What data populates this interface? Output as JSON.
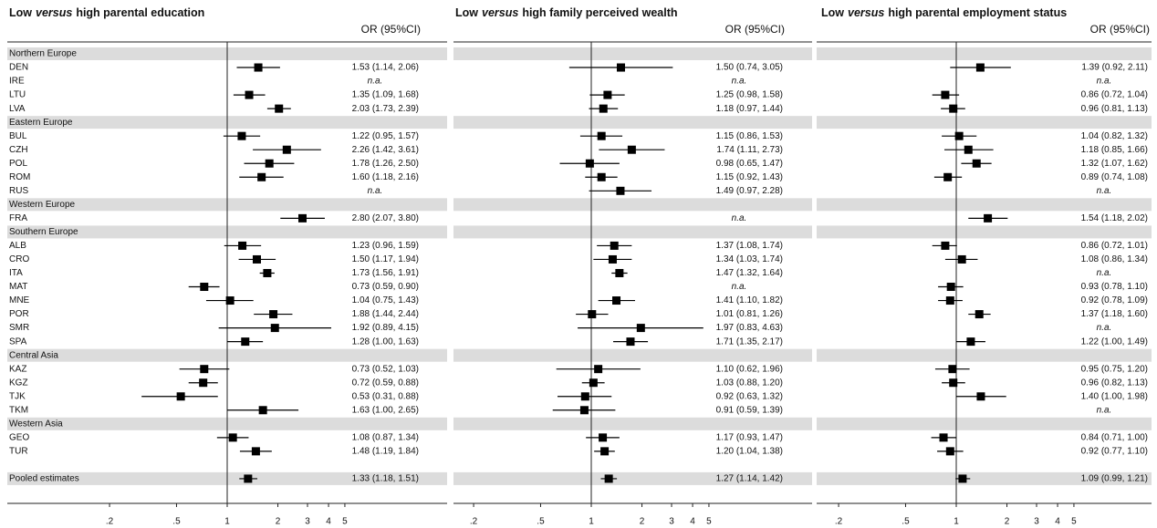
{
  "chart_data": [
    {
      "type": "forest",
      "title": {
        "before": "Low",
        "emphasis": "versus",
        "after": "high parental education"
      },
      "column_header": "OR (95%CI)",
      "groups": [
        {
          "name": "Northern Europe",
          "categories": [
            "DEN",
            "IRE",
            "LTU",
            "LVA"
          ]
        },
        {
          "name": "Eastern Europe",
          "categories": [
            "BUL",
            "CZH",
            "POL",
            "ROM",
            "RUS"
          ]
        },
        {
          "name": "Western Europe",
          "categories": [
            "FRA"
          ]
        },
        {
          "name": "Southern Europe",
          "categories": [
            "ALB",
            "CRO",
            "ITA",
            "MAT",
            "MNE",
            "POR",
            "SMR",
            "SPA"
          ]
        },
        {
          "name": "Central Asia",
          "categories": [
            "KAZ",
            "KGZ",
            "TJK",
            "TKM"
          ]
        },
        {
          "name": "Western Asia",
          "categories": [
            "GEO",
            "TUR"
          ]
        }
      ],
      "pooled_label": "Pooled estimates",
      "values": [
        1.53,
        null,
        1.35,
        2.03,
        1.22,
        2.26,
        1.78,
        1.6,
        null,
        2.8,
        1.23,
        1.5,
        1.73,
        0.73,
        1.04,
        1.88,
        1.92,
        1.28,
        0.73,
        0.72,
        0.53,
        1.63,
        1.08,
        1.48,
        1.33
      ],
      "lo": [
        1.14,
        null,
        1.09,
        1.73,
        0.95,
        1.42,
        1.26,
        1.18,
        null,
        2.07,
        0.96,
        1.17,
        1.56,
        0.59,
        0.75,
        1.44,
        0.89,
        1.0,
        0.52,
        0.59,
        0.31,
        1.0,
        0.87,
        1.19,
        1.18
      ],
      "hi": [
        2.06,
        null,
        1.68,
        2.39,
        1.57,
        3.61,
        2.5,
        2.16,
        null,
        3.8,
        1.59,
        1.94,
        1.91,
        0.9,
        1.43,
        2.44,
        4.15,
        1.63,
        1.03,
        0.88,
        0.88,
        2.65,
        1.34,
        1.84,
        1.51
      ],
      "value_labels": [
        "1.53 (1.14, 2.06)",
        "n.a.",
        "1.35 (1.09, 1.68)",
        "2.03 (1.73, 2.39)",
        "1.22 (0.95, 1.57)",
        "2.26 (1.42, 3.61)",
        "1.78 (1.26, 2.50)",
        "1.60 (1.18, 2.16)",
        "n.a.",
        "2.80 (2.07, 3.80)",
        "1.23 (0.96, 1.59)",
        "1.50 (1.17, 1.94)",
        "1.73 (1.56, 1.91)",
        "0.73 (0.59, 0.90)",
        "1.04 (0.75, 1.43)",
        "1.88 (1.44, 2.44)",
        "1.92 (0.89, 4.15)",
        "1.28 (1.00, 1.63)",
        "0.73 (0.52, 1.03)",
        "0.72 (0.59, 0.88)",
        "0.53 (0.31, 0.88)",
        "1.63 (1.00, 2.65)",
        "1.08 (0.87, 1.34)",
        "1.48 (1.19, 1.84)",
        "1.33 (1.18, 1.51)"
      ],
      "xscale": "log",
      "xlim": [
        0.05,
        20
      ],
      "xticks": [
        {
          "value": 0.2,
          "label": ".2"
        },
        {
          "value": 0.5,
          "label": ".5"
        },
        1,
        2,
        3,
        4,
        5
      ],
      "reference": 1,
      "color": "#000000",
      "band_color": "#dcdcdc"
    },
    {
      "type": "forest",
      "title": {
        "before": "Low",
        "emphasis": "versus",
        "after": "high family perceived wealth"
      },
      "column_header": "OR (95%CI)",
      "values": [
        1.5,
        null,
        1.25,
        1.18,
        1.15,
        1.74,
        0.98,
        1.15,
        1.49,
        null,
        1.37,
        1.34,
        1.47,
        null,
        1.41,
        1.01,
        1.97,
        1.71,
        1.1,
        1.03,
        0.92,
        0.91,
        1.17,
        1.2,
        1.27
      ],
      "lo": [
        0.74,
        null,
        0.98,
        0.97,
        0.86,
        1.11,
        0.65,
        0.92,
        0.97,
        null,
        1.08,
        1.03,
        1.32,
        null,
        1.1,
        0.81,
        0.83,
        1.35,
        0.62,
        0.88,
        0.63,
        0.59,
        0.93,
        1.04,
        1.14
      ],
      "hi": [
        3.05,
        null,
        1.58,
        1.44,
        1.53,
        2.73,
        1.47,
        1.43,
        2.28,
        null,
        1.74,
        1.74,
        1.64,
        null,
        1.82,
        1.26,
        4.63,
        2.17,
        1.96,
        1.2,
        1.32,
        1.39,
        1.47,
        1.38,
        1.42
      ],
      "value_labels": [
        "1.50 (0.74, 3.05)",
        "n.a.",
        "1.25 (0.98, 1.58)",
        "1.18 (0.97, 1.44)",
        "1.15 (0.86, 1.53)",
        "1.74 (1.11, 2.73)",
        "0.98 (0.65, 1.47)",
        "1.15 (0.92, 1.43)",
        "1.49 (0.97, 2.28)",
        "n.a.",
        "1.37 (1.08, 1.74)",
        "1.34 (1.03, 1.74)",
        "1.47 (1.32, 1.64)",
        "n.a.",
        "1.41 (1.10, 1.82)",
        "1.01 (0.81, 1.26)",
        "1.97 (0.83, 4.63)",
        "1.71 (1.35, 2.17)",
        "1.10 (0.62, 1.96)",
        "1.03 (0.88, 1.20)",
        "0.92 (0.63, 1.32)",
        "0.91 (0.59, 1.39)",
        "1.17 (0.93, 1.47)",
        "1.20 (1.04, 1.38)",
        "1.27 (1.14, 1.42)"
      ],
      "xscale": "log",
      "xlim": [
        0.05,
        20
      ],
      "xticks": [
        {
          "value": 0.2,
          "label": ".2"
        },
        {
          "value": 0.5,
          "label": ".5"
        },
        1,
        2,
        3,
        4,
        5
      ],
      "reference": 1,
      "color": "#000000",
      "band_color": "#dcdcdc"
    },
    {
      "type": "forest",
      "title": {
        "before": "Low",
        "emphasis": "versus",
        "after": "high parental employment status"
      },
      "column_header": "OR (95%CI)",
      "values": [
        1.39,
        null,
        0.86,
        0.96,
        1.04,
        1.18,
        1.32,
        0.89,
        null,
        1.54,
        0.86,
        1.08,
        null,
        0.93,
        0.92,
        1.37,
        null,
        1.22,
        0.95,
        0.96,
        1.4,
        null,
        0.84,
        0.92,
        1.09
      ],
      "lo": [
        0.92,
        null,
        0.72,
        0.81,
        0.82,
        0.85,
        1.07,
        0.74,
        null,
        1.18,
        0.72,
        0.86,
        null,
        0.78,
        0.78,
        1.18,
        null,
        1.0,
        0.75,
        0.82,
        1.0,
        null,
        0.71,
        0.77,
        0.99
      ],
      "hi": [
        2.11,
        null,
        1.04,
        1.13,
        1.32,
        1.66,
        1.62,
        1.08,
        null,
        2.02,
        1.01,
        1.34,
        null,
        1.1,
        1.09,
        1.6,
        null,
        1.49,
        1.2,
        1.13,
        1.98,
        null,
        1.0,
        1.1,
        1.21
      ],
      "value_labels": [
        "1.39 (0.92, 2.11)",
        "n.a.",
        "0.86 (0.72, 1.04)",
        "0.96 (0.81, 1.13)",
        "1.04 (0.82, 1.32)",
        "1.18 (0.85, 1.66)",
        "1.32 (1.07, 1.62)",
        "0.89 (0.74, 1.08)",
        "n.a.",
        "1.54 (1.18, 2.02)",
        "0.86 (0.72, 1.01)",
        "1.08 (0.86, 1.34)",
        "n.a.",
        "0.93 (0.78, 1.10)",
        "0.92 (0.78, 1.09)",
        "1.37 (1.18, 1.60)",
        "n.a.",
        "1.22 (1.00, 1.49)",
        "0.95 (0.75, 1.20)",
        "0.96 (0.82, 1.13)",
        "1.40 (1.00, 1.98)",
        "n.a.",
        "0.84 (0.71, 1.00)",
        "0.92 (0.77, 1.10)",
        "1.09 (0.99, 1.21)"
      ],
      "xscale": "log",
      "xlim": [
        0.05,
        20
      ],
      "xticks": [
        {
          "value": 0.2,
          "label": ".2"
        },
        {
          "value": 0.5,
          "label": ".5"
        },
        1,
        2,
        3,
        4,
        5
      ],
      "reference": 1,
      "color": "#000000",
      "band_color": "#dcdcdc"
    }
  ]
}
